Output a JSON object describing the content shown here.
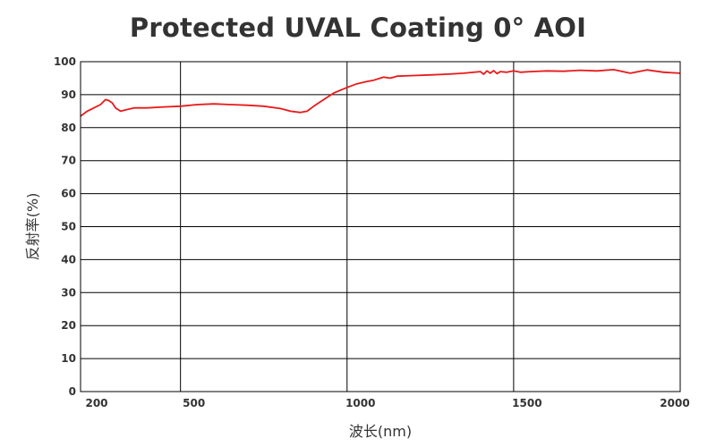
{
  "chart_data": {
    "type": "line",
    "title": "Protected UVAL Coating 0° AOI",
    "xlabel": "波长(nm)",
    "ylabel": "反射率(%)",
    "xlim": [
      200,
      2000
    ],
    "ylim": [
      0,
      100
    ],
    "x_ticks": [
      200,
      500,
      1000,
      1500,
      2000
    ],
    "y_ticks": [
      0,
      10,
      20,
      30,
      40,
      50,
      60,
      70,
      80,
      90,
      100
    ],
    "x_gridlines": [
      500,
      1000,
      1500
    ],
    "grid": true,
    "legend": "none",
    "series": [
      {
        "color": "#e8191a",
        "x": [
          200,
          220,
          240,
          260,
          275,
          285,
          295,
          305,
          320,
          340,
          360,
          400,
          450,
          500,
          550,
          600,
          650,
          700,
          750,
          800,
          830,
          860,
          880,
          900,
          930,
          960,
          1000,
          1030,
          1060,
          1080,
          1100,
          1110,
          1130,
          1150,
          1200,
          1250,
          1300,
          1350,
          1400,
          1410,
          1420,
          1430,
          1440,
          1450,
          1460,
          1480,
          1500,
          1520,
          1550,
          1600,
          1650,
          1700,
          1750,
          1800,
          1850,
          1900,
          1950,
          2000
        ],
        "y": [
          83.5,
          85.0,
          86.0,
          87.0,
          88.5,
          88.2,
          87.5,
          86.0,
          85.0,
          85.5,
          86.0,
          86.0,
          86.3,
          86.5,
          87.0,
          87.2,
          87.0,
          86.8,
          86.5,
          85.8,
          85.0,
          84.6,
          85.0,
          86.5,
          88.5,
          90.5,
          92.2,
          93.3,
          94.0,
          94.4,
          95.0,
          95.3,
          95.0,
          95.6,
          95.8,
          96.0,
          96.2,
          96.5,
          97.0,
          96.2,
          97.2,
          96.5,
          97.3,
          96.4,
          97.0,
          96.8,
          97.2,
          96.8,
          97.0,
          97.2,
          97.1,
          97.4,
          97.2,
          97.6,
          96.5,
          97.5,
          96.8,
          96.5
        ]
      }
    ]
  }
}
